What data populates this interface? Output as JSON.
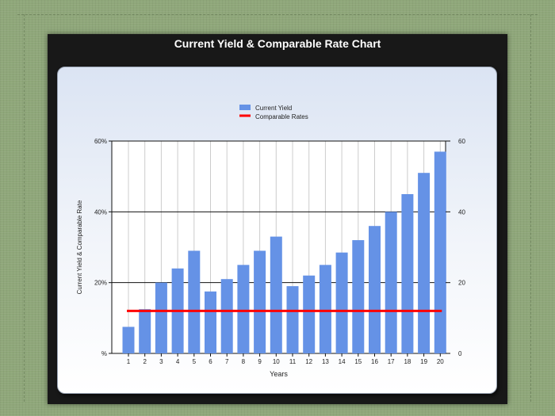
{
  "page": {
    "title": "Current Yield & Comparable Rate Chart"
  },
  "chart_data": {
    "type": "bar",
    "categories": [
      "1",
      "2",
      "3",
      "4",
      "5",
      "6",
      "7",
      "8",
      "9",
      "10",
      "11",
      "12",
      "13",
      "14",
      "15",
      "16",
      "17",
      "18",
      "19",
      "20"
    ],
    "series": [
      {
        "name": "Current Yield",
        "kind": "bar",
        "color": "#6592e6",
        "values": [
          7.5,
          12.5,
          20,
          24,
          29,
          17.5,
          21,
          25,
          29,
          33,
          19,
          22,
          25,
          28.5,
          32,
          36,
          40,
          45,
          51,
          57
        ]
      },
      {
        "name": "Comparable Rates",
        "kind": "line",
        "color": "#ff0000",
        "values": [
          12,
          12,
          12,
          12,
          12,
          12,
          12,
          12,
          12,
          12,
          12,
          12,
          12,
          12,
          12,
          12,
          12,
          12,
          12,
          12
        ]
      }
    ],
    "xlabel": "Years",
    "ylabel": "Current Yield & Comparable Rate",
    "ylim": [
      0,
      60
    ],
    "y_ticks_left": [
      "%",
      "20%",
      "40%",
      "60%"
    ],
    "y_ticks_right": [
      "0",
      "20",
      "40",
      "60"
    ],
    "legend": "top-center",
    "grid": true
  }
}
